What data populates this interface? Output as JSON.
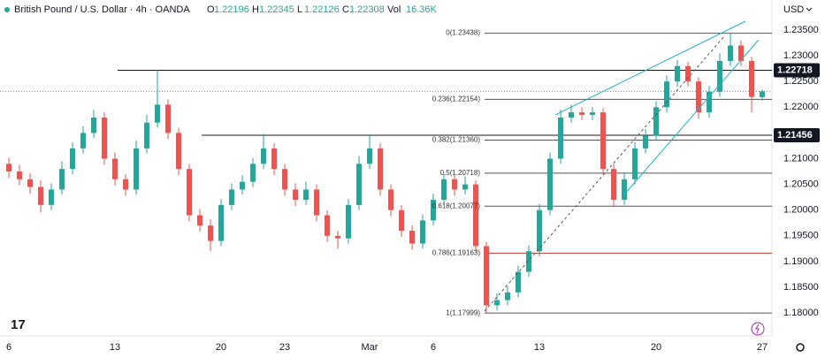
{
  "chart_data": {
    "type": "candlestick",
    "title": "British Pound / U.S. Dollar · 4h · OANDA",
    "ohlc_labels": [
      "O",
      "H",
      "L",
      "C",
      "Vol"
    ],
    "volume": {
      "value": 16360,
      "label": "16.36K"
    },
    "currency": "USD",
    "up_color": "#26a69a",
    "down_color": "#ef5350",
    "categories": [
      "6",
      null,
      null,
      null,
      null,
      null,
      null,
      null,
      null,
      null,
      "13",
      null,
      null,
      null,
      null,
      null,
      null,
      null,
      null,
      null,
      "20",
      null,
      null,
      null,
      null,
      null,
      "23",
      null,
      null,
      null,
      null,
      null,
      null,
      null,
      "Mar",
      null,
      null,
      null,
      null,
      null,
      "6",
      null,
      null,
      null,
      null,
      null,
      null,
      null,
      null,
      null,
      "13",
      null,
      null,
      null,
      null,
      null,
      null,
      null,
      null,
      null,
      null,
      "20",
      null,
      null,
      null,
      null,
      null,
      null,
      null,
      null,
      null,
      "27"
    ],
    "open": [
      1.209,
      1.2075,
      1.206,
      1.2045,
      1.201,
      1.204,
      1.208,
      1.212,
      1.215,
      1.218,
      1.21,
      1.206,
      1.204,
      1.212,
      1.217,
      1.2205,
      1.215,
      1.208,
      1.199,
      1.197,
      1.194,
      1.201,
      1.204,
      1.2055,
      1.209,
      1.212,
      1.208,
      1.204,
      1.202,
      1.204,
      1.199,
      1.195,
      1.1945,
      1.201,
      1.209,
      1.212,
      1.204,
      1.2,
      1.196,
      1.1935,
      1.198,
      1.202,
      1.206,
      1.204,
      1.205,
      1.193,
      1.1815,
      1.1825,
      1.184,
      1.188,
      1.192,
      1.2,
      1.21,
      1.218,
      1.219,
      1.2185,
      1.219,
      1.208,
      1.202,
      1.206,
      1.212,
      1.2145,
      1.22,
      1.225,
      1.228,
      1.225,
      1.219,
      1.223,
      1.229,
      1.232,
      1.229,
      1.22196
    ],
    "high": [
      1.2102,
      1.2088,
      1.2072,
      1.2058,
      1.2052,
      1.2095,
      1.2132,
      1.2163,
      1.2195,
      1.219,
      1.2112,
      1.207,
      1.2135,
      1.2185,
      1.2272,
      1.2215,
      1.216,
      1.209,
      1.2002,
      1.1982,
      1.2022,
      1.2052,
      1.2068,
      1.2102,
      1.2148,
      1.213,
      1.209,
      1.2052,
      1.2055,
      1.205,
      1.2,
      1.196,
      1.2022,
      1.2105,
      1.2145,
      1.213,
      1.205,
      1.201,
      1.197,
      1.1992,
      1.2032,
      1.207,
      1.2068,
      1.2065,
      1.2058,
      1.1938,
      1.1838,
      1.1852,
      1.1892,
      1.1932,
      1.2012,
      1.2112,
      1.2195,
      1.2205,
      1.22,
      1.22,
      1.2198,
      1.209,
      1.2072,
      1.2132,
      1.2158,
      1.2212,
      1.2262,
      1.2292,
      1.2288,
      1.2258,
      1.2242,
      1.2305,
      1.2344,
      1.233,
      1.2298,
      1.22345
    ],
    "low": [
      1.2062,
      1.2048,
      1.2032,
      1.1995,
      1.2,
      1.203,
      1.207,
      1.211,
      1.214,
      1.2088,
      1.2048,
      1.2028,
      1.203,
      1.211,
      1.216,
      1.2138,
      1.2068,
      1.1978,
      1.1958,
      1.192,
      1.193,
      1.2,
      1.203,
      1.2045,
      1.208,
      1.2068,
      1.2028,
      1.2008,
      1.201,
      1.1978,
      1.1938,
      1.1925,
      1.1935,
      1.2,
      1.208,
      1.2028,
      1.1988,
      1.1948,
      1.1923,
      1.1925,
      1.197,
      1.201,
      1.2028,
      1.203,
      1.1918,
      1.18,
      1.1805,
      1.1815,
      1.183,
      1.187,
      1.191,
      1.199,
      1.209,
      1.217,
      1.2175,
      1.2175,
      1.207,
      1.2008,
      1.201,
      1.205,
      1.211,
      1.2135,
      1.219,
      1.224,
      1.224,
      1.2178,
      1.218,
      1.222,
      1.228,
      1.228,
      1.219,
      1.22126
    ],
    "close": [
      1.2075,
      1.206,
      1.2045,
      1.201,
      1.204,
      1.208,
      1.212,
      1.215,
      1.218,
      1.21,
      1.206,
      1.204,
      1.212,
      1.217,
      1.2205,
      1.215,
      1.208,
      1.199,
      1.197,
      1.194,
      1.201,
      1.204,
      1.2055,
      1.209,
      1.212,
      1.208,
      1.204,
      1.202,
      1.204,
      1.199,
      1.195,
      1.1945,
      1.201,
      1.209,
      1.212,
      1.204,
      1.2,
      1.196,
      1.1935,
      1.198,
      1.202,
      1.206,
      1.204,
      1.205,
      1.193,
      1.1815,
      1.1825,
      1.184,
      1.188,
      1.192,
      1.2,
      1.21,
      1.218,
      1.219,
      1.2185,
      1.219,
      1.208,
      1.202,
      1.206,
      1.212,
      1.2145,
      1.22,
      1.225,
      1.228,
      1.225,
      1.219,
      1.223,
      1.229,
      1.232,
      1.229,
      1.222,
      1.22308
    ],
    "ylim": [
      1.17555,
      1.24084
    ],
    "yticks": [
      {
        "value": 1.235,
        "label": "1.23500"
      },
      {
        "value": 1.23,
        "label": "1.23000"
      },
      {
        "value": 1.225,
        "label": "1.22500"
      },
      {
        "value": 1.22,
        "label": "1.22000"
      },
      {
        "value": 1.21,
        "label": "1.21000"
      },
      {
        "value": 1.205,
        "label": "1.20500"
      },
      {
        "value": 1.2,
        "label": "1.20000"
      },
      {
        "value": 1.195,
        "label": "1.19500"
      },
      {
        "value": 1.19,
        "label": "1.19000"
      },
      {
        "value": 1.185,
        "label": "1.18500"
      },
      {
        "value": 1.18,
        "label": "1.18000"
      }
    ],
    "hlines": [
      1.22718,
      1.21456
    ],
    "fib_levels": [
      {
        "value": 1.23438,
        "label": "0(1.23438)",
        "color": "#555555"
      },
      {
        "value": 1.22154,
        "label": "0.236(1.22154)",
        "color": "#555555"
      },
      {
        "value": 1.2136,
        "label": "0.382(1.21360)",
        "color": "#555555"
      },
      {
        "value": 1.20718,
        "label": "0.5(1.20718)",
        "color": "#555555"
      },
      {
        "value": 1.20077,
        "label": "0.618(1.20077)",
        "color": "#555555"
      },
      {
        "value": 1.19163,
        "label": "0.786(1.19163)",
        "color": "#c0392b"
      },
      {
        "value": 1.17999,
        "label": "1(1.17999)",
        "color": "#555555"
      }
    ]
  }
}
